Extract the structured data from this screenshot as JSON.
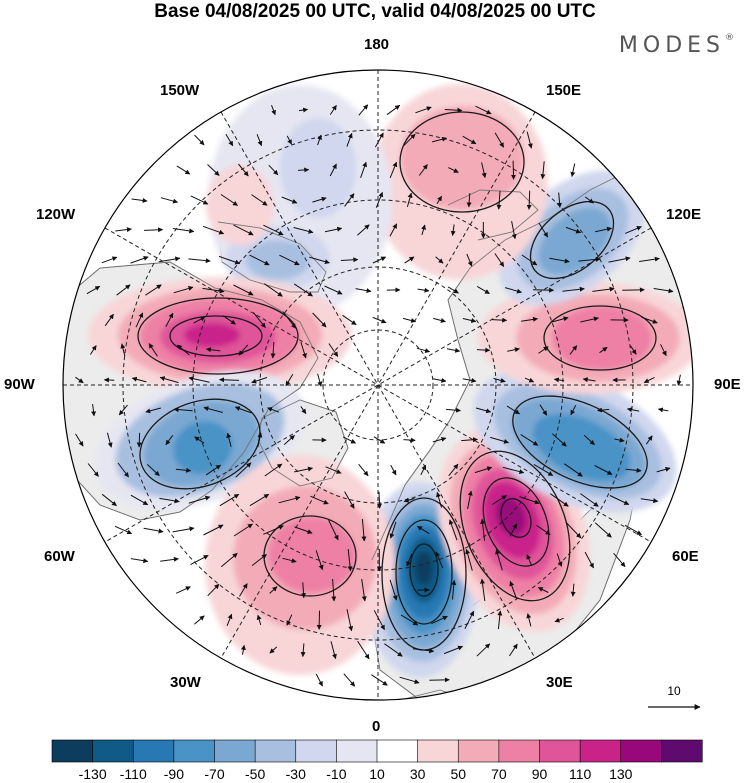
{
  "title": "Base 04/08/2025 00 UTC, valid 04/08/2025 00 UTC",
  "brand": "MODES",
  "brand_mark": "®",
  "longitude_labels": {
    "north": "180",
    "south": "0",
    "east": "90E",
    "west": "90W",
    "ne1": "150E",
    "ne2": "120E",
    "nw1": "150W",
    "nw2": "120W",
    "se1": "60E",
    "se2": "30E",
    "sw1": "60W",
    "sw2": "30W"
  },
  "vector_scale_label": "10",
  "colorbar": {
    "tick_labels": [
      "-130",
      "-110",
      "-90",
      "-70",
      "-50",
      "-30",
      "-10",
      "10",
      "30",
      "50",
      "70",
      "90",
      "110",
      "130"
    ],
    "colors": [
      "#0c3d5e",
      "#0f5a87",
      "#2878b4",
      "#4a93c7",
      "#7aa8d2",
      "#a8bfe0",
      "#d0d7ee",
      "#e6e6f2",
      "#ffffff",
      "#f8d6d8",
      "#f3acb7",
      "#ee80a6",
      "#e05599",
      "#c9238a",
      "#98087a",
      "#5e0a6e"
    ]
  },
  "map": {
    "colors": {
      "land": "#ececec",
      "coast": "#6e6e6e",
      "grid": "#222222",
      "contour": "#1a1a1a"
    },
    "anomalies": [
      {
        "name": "anomaly-blue-north-scandinavia",
        "value": -140
      },
      {
        "name": "anomaly-magenta-west-siberia",
        "value": 120
      },
      {
        "name": "anomaly-blue-central-siberia",
        "value": -85
      },
      {
        "name": "anomaly-pink-east-siberia",
        "value": 75
      },
      {
        "name": "anomaly-blue-far-east",
        "value": -65
      },
      {
        "name": "anomaly-pink-bering",
        "value": 35
      },
      {
        "name": "anomaly-lightblue-alaska",
        "value": -35
      },
      {
        "name": "anomaly-magenta-canada",
        "value": 85
      },
      {
        "name": "anomaly-blue-labrador",
        "value": -75
      },
      {
        "name": "anomaly-pink-north-atlantic",
        "value": 70
      }
    ]
  }
}
